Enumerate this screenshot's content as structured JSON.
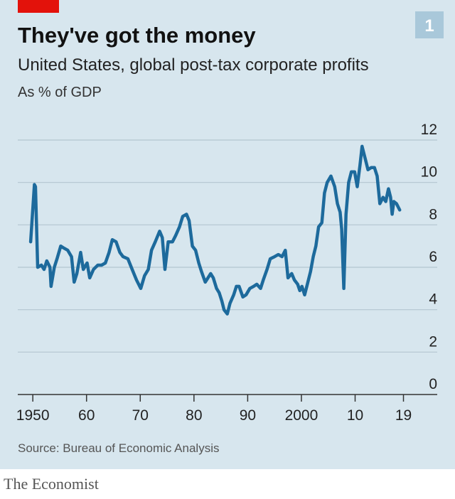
{
  "chart_data": {
    "type": "line",
    "title": "They've got the money",
    "subtitle": "United States, global post-tax corporate profits",
    "y_label": "As % of GDP",
    "chart_number": "1",
    "source": "Source: Bureau of Economic Analysis",
    "publisher": "The Economist",
    "xlim": [
      1947.2,
      2023.3
    ],
    "ylim": [
      0,
      12
    ],
    "xticks": [
      1950,
      {
        "value": 1960,
        "label": "60"
      },
      {
        "value": 1970,
        "label": "70"
      },
      {
        "value": 1980,
        "label": "80"
      },
      {
        "value": 1990,
        "label": "90"
      },
      2000,
      {
        "value": 2010,
        "label": "10"
      },
      {
        "value": 2019,
        "label": "19"
      }
    ],
    "yticks": [
      0,
      2,
      4,
      6,
      8,
      10,
      12
    ],
    "grid": true,
    "series": [
      {
        "color": "#1d6a9c",
        "x": [
          1949.6,
          1950.3,
          1950.5,
          1950.9,
          1951.6,
          1952.1,
          1952.6,
          1953.2,
          1953.4,
          1954.0,
          1954.5,
          1955.2,
          1955.8,
          1956.5,
          1957.2,
          1957.7,
          1958.2,
          1958.9,
          1959.4,
          1960.1,
          1960.6,
          1961.3,
          1962.1,
          1962.8,
          1963.5,
          1964.2,
          1964.8,
          1965.5,
          1966.2,
          1966.8,
          1967.7,
          1968.5,
          1969.3,
          1970.1,
          1970.8,
          1971.5,
          1972.1,
          1972.8,
          1973.6,
          1974.1,
          1974.6,
          1975.2,
          1976.0,
          1976.6,
          1977.3,
          1977.9,
          1978.6,
          1979.1,
          1979.7,
          1980.3,
          1980.9,
          1981.4,
          1982.1,
          1982.6,
          1983.1,
          1983.6,
          1984.2,
          1984.7,
          1985.2,
          1985.6,
          1986.2,
          1986.7,
          1987.4,
          1987.9,
          1988.4,
          1989.1,
          1989.7,
          1990.4,
          1991.1,
          1991.7,
          1992.4,
          1992.9,
          1993.6,
          1994.2,
          1995.0,
          1995.7,
          1996.4,
          1997.0,
          1997.5,
          1998.2,
          1998.7,
          1999.3,
          1999.7,
          2000.1,
          2000.6,
          2001.1,
          2001.7,
          2002.2,
          2002.7,
          2003.2,
          2003.8,
          2004.3,
          2004.8,
          2005.5,
          2006.2,
          2006.7,
          2007.2,
          2007.5,
          2007.9,
          2008.3,
          2008.8,
          2009.3,
          2009.9,
          2010.4,
          2010.9,
          2011.3,
          2011.9,
          2012.4,
          2013.0,
          2013.6,
          2014.1,
          2014.6,
          2015.2,
          2015.7,
          2016.2,
          2016.6,
          2016.9,
          2017.2,
          2017.7,
          2018.3
        ],
        "values": [
          7.2,
          9.9,
          9.8,
          6.0,
          6.1,
          5.9,
          6.3,
          6.0,
          5.1,
          6.0,
          6.4,
          7.0,
          6.9,
          6.8,
          6.5,
          5.3,
          5.7,
          6.7,
          5.9,
          6.2,
          5.5,
          5.9,
          6.1,
          6.1,
          6.2,
          6.7,
          7.3,
          7.2,
          6.7,
          6.5,
          6.4,
          5.9,
          5.4,
          5.0,
          5.6,
          5.9,
          6.8,
          7.2,
          7.7,
          7.4,
          5.9,
          7.2,
          7.2,
          7.5,
          7.9,
          8.4,
          8.5,
          8.2,
          7.0,
          6.8,
          6.2,
          5.8,
          5.3,
          5.5,
          5.7,
          5.5,
          5.0,
          4.8,
          4.4,
          4.0,
          3.8,
          4.3,
          4.7,
          5.1,
          5.1,
          4.6,
          4.7,
          5.0,
          5.1,
          5.2,
          5.0,
          5.4,
          5.9,
          6.4,
          6.5,
          6.6,
          6.5,
          6.8,
          5.5,
          5.7,
          5.4,
          5.2,
          4.9,
          5.1,
          4.7,
          5.2,
          5.8,
          6.5,
          7.0,
          7.9,
          8.1,
          9.5,
          10.0,
          10.3,
          9.8,
          9.0,
          8.6,
          7.8,
          5.0,
          8.5,
          10.0,
          10.5,
          10.5,
          9.8,
          10.8,
          11.7,
          11.1,
          10.6,
          10.7,
          10.7,
          10.3,
          9.0,
          9.3,
          9.1,
          9.7,
          9.3,
          8.5,
          9.1,
          9.0,
          8.7
        ]
      }
    ]
  }
}
